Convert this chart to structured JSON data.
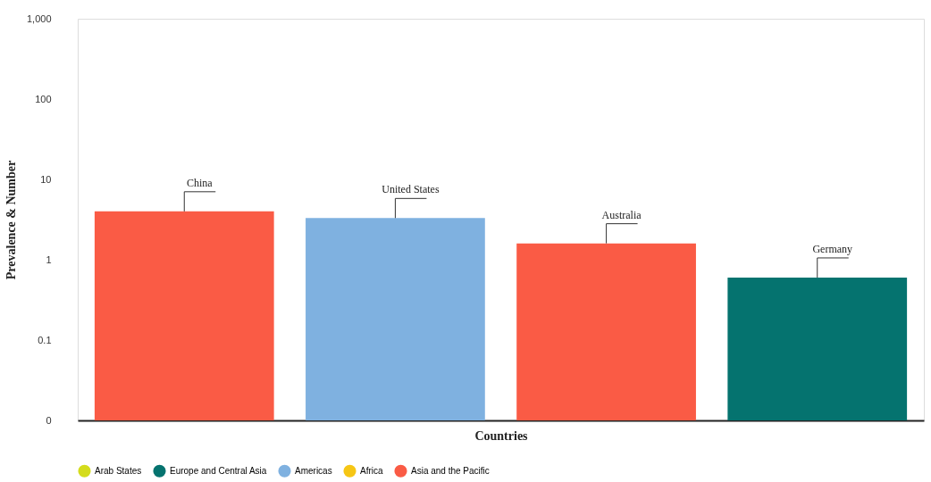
{
  "chart_data": {
    "type": "bar",
    "xlabel": "Countries",
    "ylabel": "Prevalence & Number",
    "categories": [
      "China",
      "United States",
      "Australia",
      "Germany"
    ],
    "series": [
      {
        "name": "Arab States",
        "color": "#d4dc1c",
        "values": [
          null,
          null,
          null,
          null
        ]
      },
      {
        "name": "Europe and Central Asia",
        "color": "#05736f",
        "values": [
          null,
          null,
          null,
          0.6
        ]
      },
      {
        "name": "Americas",
        "color": "#7fb1e0",
        "values": [
          null,
          3.3,
          null,
          null
        ]
      },
      {
        "name": "Africa",
        "color": "#f6c615",
        "values": [
          null,
          null,
          null,
          null
        ]
      },
      {
        "name": "Asia and the Pacific",
        "color": "#fa5b45",
        "values": [
          4,
          null,
          1.6,
          null
        ]
      }
    ],
    "log": true,
    "ylim": [
      0.01,
      1000
    ],
    "yticks": [
      {
        "value": 0.01,
        "label": "0"
      },
      0.1,
      1,
      10,
      100,
      {
        "value": 1000,
        "label": "1,000"
      }
    ],
    "tick_labels": "y",
    "legend": "bottom"
  }
}
